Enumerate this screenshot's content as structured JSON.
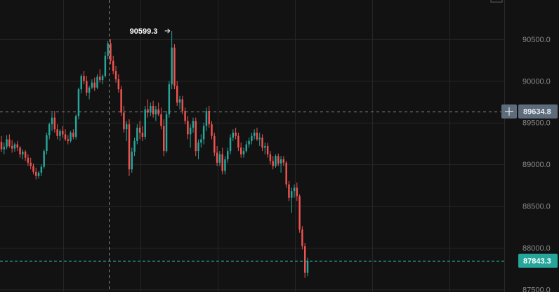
{
  "colors": {
    "background": "#121212",
    "grid": "#262626",
    "up": "#26a69a",
    "down": "#ef5350",
    "crosshair": "#8a8a8a",
    "last_price_line": "#26a69a",
    "last_price_badge": "#26a69a",
    "cross_price_badge": "#5d6b7a",
    "axis_text": "#8a8a8a"
  },
  "crosshair": {
    "price_label": "89634.8",
    "price": 89634.8,
    "icon": "crosshair-plus-icon"
  },
  "last_price": {
    "label": "87843.3",
    "price": 87843.3
  },
  "high_marker": {
    "label": "90599.3",
    "price": 90599.3,
    "arrow_icon": "arrow-right-icon"
  },
  "chart_data": {
    "type": "candlestick",
    "y_ticks": [
      "90500.0",
      "90000.0",
      "89500.0",
      "89000.0",
      "88500.0",
      "88000.0",
      "87500.0"
    ],
    "y_tick_values": [
      90500,
      90000,
      89500,
      89000,
      88500,
      88000,
      87500
    ],
    "ylim": [
      87470,
      90970
    ],
    "grid": true,
    "candles": [
      [
        89270,
        89340,
        89150,
        89180
      ],
      [
        89180,
        89260,
        89120,
        89210
      ],
      [
        89210,
        89350,
        89180,
        89300
      ],
      [
        89300,
        89360,
        89200,
        89220
      ],
      [
        89220,
        89290,
        89140,
        89190
      ],
      [
        89190,
        89260,
        89150,
        89240
      ],
      [
        89240,
        89280,
        89160,
        89200
      ],
      [
        89200,
        89220,
        89080,
        89120
      ],
      [
        89120,
        89180,
        89060,
        89150
      ],
      [
        89150,
        89170,
        89040,
        89080
      ],
      [
        89080,
        89120,
        88980,
        89020
      ],
      [
        89020,
        89080,
        88940,
        88980
      ],
      [
        88980,
        89010,
        88880,
        88910
      ],
      [
        88910,
        88960,
        88820,
        88860
      ],
      [
        88860,
        88920,
        88830,
        88900
      ],
      [
        88900,
        89000,
        88860,
        88970
      ],
      [
        88970,
        89180,
        88950,
        89160
      ],
      [
        89160,
        89380,
        89120,
        89350
      ],
      [
        89350,
        89500,
        89300,
        89480
      ],
      [
        89480,
        89620,
        89400,
        89560
      ],
      [
        89560,
        89640,
        89380,
        89420
      ],
      [
        89420,
        89480,
        89300,
        89340
      ],
      [
        89340,
        89420,
        89280,
        89400
      ],
      [
        89400,
        89460,
        89320,
        89360
      ],
      [
        89360,
        89420,
        89280,
        89300
      ],
      [
        89300,
        89350,
        89240,
        89280
      ],
      [
        89280,
        89400,
        89260,
        89380
      ],
      [
        89380,
        89420,
        89300,
        89330
      ],
      [
        89330,
        89600,
        89300,
        89580
      ],
      [
        89580,
        89920,
        89540,
        89900
      ],
      [
        89900,
        90080,
        89850,
        90060
      ],
      [
        90060,
        90120,
        89960,
        90000
      ],
      [
        90000,
        90060,
        89820,
        89860
      ],
      [
        89860,
        89940,
        89780,
        89920
      ],
      [
        89920,
        90020,
        89900,
        89980
      ],
      [
        89980,
        90040,
        89880,
        89920
      ],
      [
        89920,
        90080,
        89900,
        90050
      ],
      [
        90050,
        90140,
        89980,
        90010
      ],
      [
        90010,
        90080,
        89960,
        90060
      ],
      [
        90060,
        90350,
        90040,
        90300
      ],
      [
        90300,
        90480,
        90260,
        90450
      ],
      [
        90450,
        90500,
        90200,
        90240
      ],
      [
        90240,
        90300,
        90080,
        90120
      ],
      [
        90120,
        90180,
        89980,
        90020
      ],
      [
        90020,
        90080,
        89860,
        89900
      ],
      [
        89900,
        89940,
        89580,
        89620
      ],
      [
        89620,
        89700,
        89380,
        89420
      ],
      [
        89420,
        89520,
        89280,
        89480
      ],
      [
        89480,
        89540,
        88860,
        88940
      ],
      [
        88940,
        89200,
        88900,
        89150
      ],
      [
        89150,
        89320,
        89100,
        89280
      ],
      [
        89280,
        89480,
        89240,
        89440
      ],
      [
        89440,
        89520,
        89300,
        89380
      ],
      [
        89380,
        89460,
        89280,
        89330
      ],
      [
        89330,
        89700,
        89300,
        89660
      ],
      [
        89660,
        89780,
        89560,
        89620
      ],
      [
        89620,
        89740,
        89580,
        89700
      ],
      [
        89700,
        89760,
        89560,
        89600
      ],
      [
        89600,
        89700,
        89520,
        89660
      ],
      [
        89660,
        89740,
        89580,
        89600
      ],
      [
        89600,
        89680,
        89420,
        89460
      ],
      [
        89460,
        89540,
        89100,
        89160
      ],
      [
        89160,
        89640,
        89140,
        89600
      ],
      [
        89600,
        90000,
        89560,
        89960
      ],
      [
        89960,
        90599.3,
        89900,
        90400
      ],
      [
        90400,
        90440,
        89900,
        89940
      ],
      [
        89940,
        90000,
        89700,
        89740
      ],
      [
        89740,
        89820,
        89660,
        89780
      ],
      [
        89780,
        89820,
        89600,
        89640
      ],
      [
        89640,
        89680,
        89480,
        89520
      ],
      [
        89520,
        89580,
        89300,
        89360
      ],
      [
        89360,
        89480,
        89200,
        89440
      ],
      [
        89440,
        89560,
        89380,
        89520
      ],
      [
        89520,
        89560,
        89100,
        89160
      ],
      [
        89160,
        89300,
        89060,
        89260
      ],
      [
        89260,
        89360,
        89200,
        89300
      ],
      [
        89300,
        89500,
        89240,
        89460
      ],
      [
        89460,
        89680,
        89400,
        89640
      ],
      [
        89640,
        89700,
        89440,
        89480
      ],
      [
        89480,
        89520,
        89300,
        89340
      ],
      [
        89340,
        89380,
        89100,
        89140
      ],
      [
        89140,
        89220,
        88980,
        89020
      ],
      [
        89020,
        89160,
        88980,
        89120
      ],
      [
        89120,
        89200,
        88880,
        88920
      ],
      [
        88920,
        89100,
        88880,
        89060
      ],
      [
        89060,
        89200,
        89020,
        89160
      ],
      [
        89160,
        89360,
        89120,
        89320
      ],
      [
        89320,
        89420,
        89280,
        89380
      ],
      [
        89380,
        89440,
        89300,
        89340
      ],
      [
        89340,
        89380,
        89160,
        89200
      ],
      [
        89200,
        89260,
        89080,
        89120
      ],
      [
        89120,
        89200,
        89080,
        89160
      ],
      [
        89160,
        89280,
        89140,
        89240
      ],
      [
        89240,
        89320,
        89200,
        89280
      ],
      [
        89280,
        89380,
        89240,
        89340
      ],
      [
        89340,
        89420,
        89300,
        89380
      ],
      [
        89380,
        89440,
        89280,
        89300
      ],
      [
        89300,
        89380,
        89220,
        89320
      ],
      [
        89320,
        89360,
        89160,
        89200
      ],
      [
        89200,
        89260,
        89120,
        89220
      ],
      [
        89220,
        89260,
        89080,
        89120
      ],
      [
        89120,
        89160,
        89000,
        89040
      ],
      [
        89040,
        89100,
        88940,
        88980
      ],
      [
        88980,
        89120,
        88960,
        89100
      ],
      [
        89100,
        89130,
        88980,
        89010
      ],
      [
        89010,
        89100,
        88900,
        89060
      ],
      [
        89060,
        89100,
        88980,
        89020
      ],
      [
        89020,
        89040,
        88720,
        88760
      ],
      [
        88760,
        88800,
        88560,
        88600
      ],
      [
        88600,
        88720,
        88420,
        88680
      ],
      [
        88680,
        88760,
        88600,
        88720
      ],
      [
        88720,
        88780,
        88560,
        88620
      ],
      [
        88620,
        88640,
        88180,
        88220
      ],
      [
        88220,
        88260,
        87980,
        88020
      ],
      [
        88020,
        88060,
        87640,
        87700
      ],
      [
        87700,
        87880,
        87660,
        87843.3
      ]
    ]
  }
}
